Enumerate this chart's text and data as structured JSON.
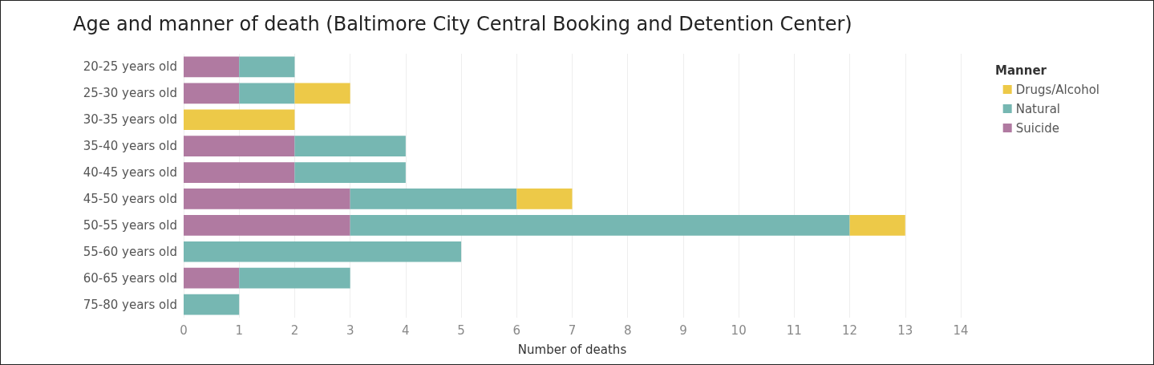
{
  "chart_data": {
    "type": "bar",
    "orientation": "horizontal",
    "stacked": true,
    "title": "Age and manner of death (Baltimore City Central Booking and Detention Center)",
    "xlabel": "Number of deaths",
    "legend_title": "Manner",
    "categories": [
      "20-25 years old",
      "25-30 years old",
      "30-35 years old",
      "35-40 years old",
      "40-45 years old",
      "45-50 years old",
      "50-55 years old",
      "55-60 years old",
      "60-65 years old",
      "75-80 years old"
    ],
    "series": [
      {
        "name": "Suicide",
        "color": "#b07aa1",
        "values": [
          1,
          1,
          null,
          2,
          2,
          3,
          3,
          null,
          1,
          null
        ]
      },
      {
        "name": "Natural",
        "color": "#76b7b2",
        "values": [
          1,
          1,
          null,
          2,
          2,
          3,
          9,
          5,
          2,
          1
        ]
      },
      {
        "name": "Drugs/Alcohol",
        "color": "#edc948",
        "values": [
          null,
          1,
          2,
          null,
          null,
          1,
          1,
          null,
          null,
          null
        ]
      }
    ],
    "xlim": [
      0,
      14
    ],
    "xticks": [
      0,
      1,
      2,
      3,
      4,
      5,
      6,
      7,
      8,
      9,
      10,
      11,
      12,
      13,
      14
    ],
    "grid": "x",
    "legend": "top right"
  }
}
